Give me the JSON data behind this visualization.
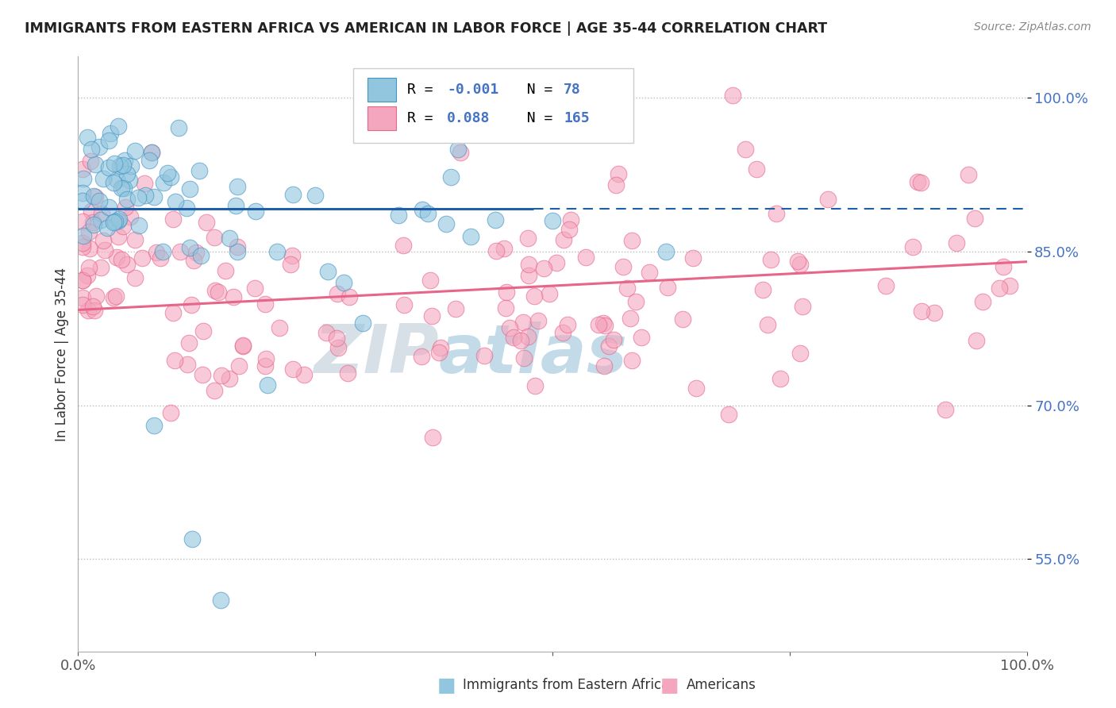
{
  "title": "IMMIGRANTS FROM EASTERN AFRICA VS AMERICAN IN LABOR FORCE | AGE 35-44 CORRELATION CHART",
  "source": "Source: ZipAtlas.com",
  "ylabel": "In Labor Force | Age 35-44",
  "xlim": [
    0.0,
    1.0
  ],
  "ylim": [
    0.46,
    1.04
  ],
  "yticks": [
    0.55,
    0.7,
    0.85,
    1.0
  ],
  "ytick_labels": [
    "55.0%",
    "70.0%",
    "85.0%",
    "100.0%"
  ],
  "legend_R1": "-0.001",
  "legend_N1": "78",
  "legend_R2": "0.088",
  "legend_N2": "165",
  "blue_color": "#92c5de",
  "pink_color": "#f4a6be",
  "blue_edge_color": "#4393c3",
  "pink_edge_color": "#e8658a",
  "blue_line_color": "#1f5fa6",
  "pink_line_color": "#e8658a",
  "blue_line_y": 0.892,
  "pink_line_start_y": 0.793,
  "pink_line_end_y": 0.84,
  "background_color": "#ffffff",
  "watermark_color": "#c5d8e8",
  "tick_color": "#4472c4",
  "legend_text_color": "#000000",
  "legend_value_color": "#4472c4"
}
